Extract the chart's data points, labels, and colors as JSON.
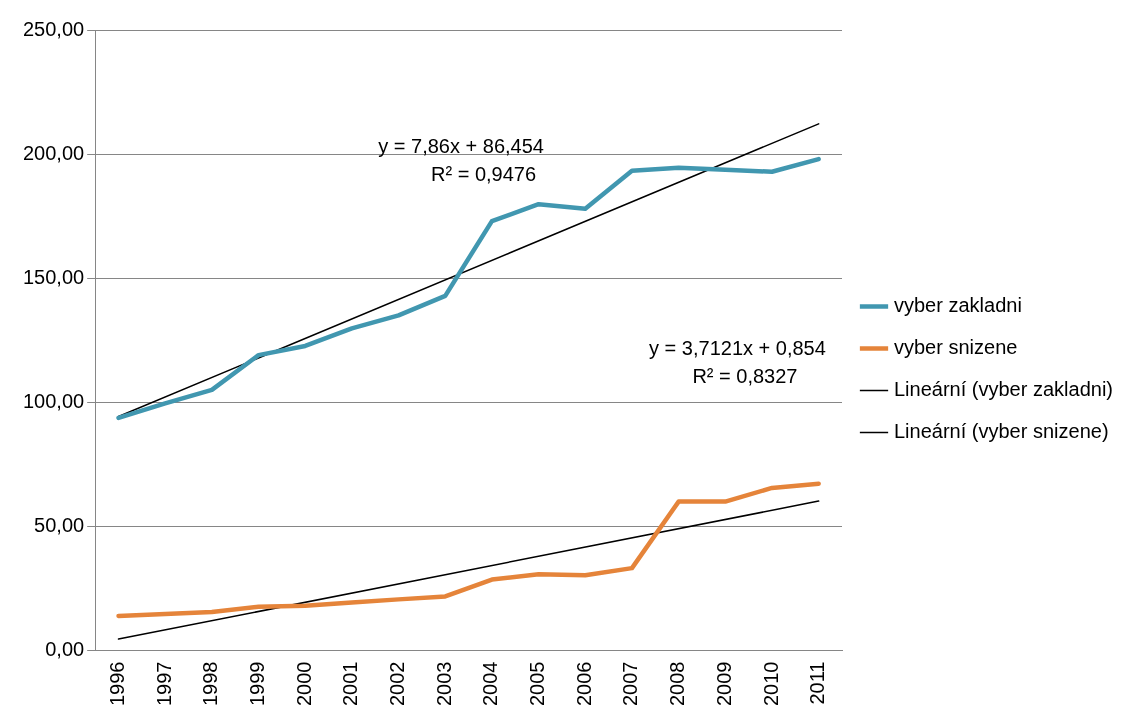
{
  "chart_data": {
    "type": "line",
    "categories": [
      "1996",
      "1997",
      "1998",
      "1999",
      "2000",
      "2001",
      "2002",
      "2003",
      "2004",
      "2005",
      "2006",
      "2007",
      "2008",
      "2009",
      "2010",
      "2011"
    ],
    "series": [
      {
        "name": "vyber zakladni",
        "color": "#4197b0",
        "values": [
          93.7,
          99.6,
          105,
          119,
          122.7,
          129.8,
          135,
          142.9,
          173,
          179.8,
          178,
          193.3,
          194.5,
          193.7,
          192.9,
          198
        ]
      },
      {
        "name": "vyber snizene",
        "color": "#e5843a",
        "values": [
          13.9,
          14.7,
          15.5,
          17.6,
          18,
          19.3,
          20.6,
          21.8,
          28.6,
          30.7,
          30.3,
          33.2,
          60,
          60,
          65.5,
          67.2
        ]
      },
      {
        "name": "Lineární (vyber zakladni)",
        "type": "line",
        "color": "#000000",
        "values": [
          94.3,
          null,
          null,
          null,
          null,
          null,
          null,
          null,
          null,
          null,
          null,
          null,
          null,
          null,
          null,
          212.2
        ]
      },
      {
        "name": "Lineární (vyber snizene)",
        "type": "line",
        "color": "#000000",
        "values": [
          4.6,
          null,
          null,
          null,
          null,
          null,
          null,
          null,
          null,
          null,
          null,
          null,
          null,
          null,
          null,
          60.2
        ]
      }
    ],
    "ylim": [
      0,
      250
    ],
    "yticks": [
      {
        "value": 0,
        "label": "0,00"
      },
      {
        "value": 50,
        "label": "50,00"
      },
      {
        "value": 100,
        "label": "100,00"
      },
      {
        "value": 150,
        "label": "150,00"
      },
      {
        "value": 200,
        "label": "200,00"
      },
      {
        "value": 250,
        "label": "250,00"
      }
    ],
    "annotations": [
      "y = 7,86x + 86,454",
      "R² = 0,9476",
      "y = 3,7121x + 0,854",
      "R² = 0,8327"
    ],
    "grid": "y",
    "legend": "right",
    "marker": "none",
    "line_style": "solid"
  }
}
